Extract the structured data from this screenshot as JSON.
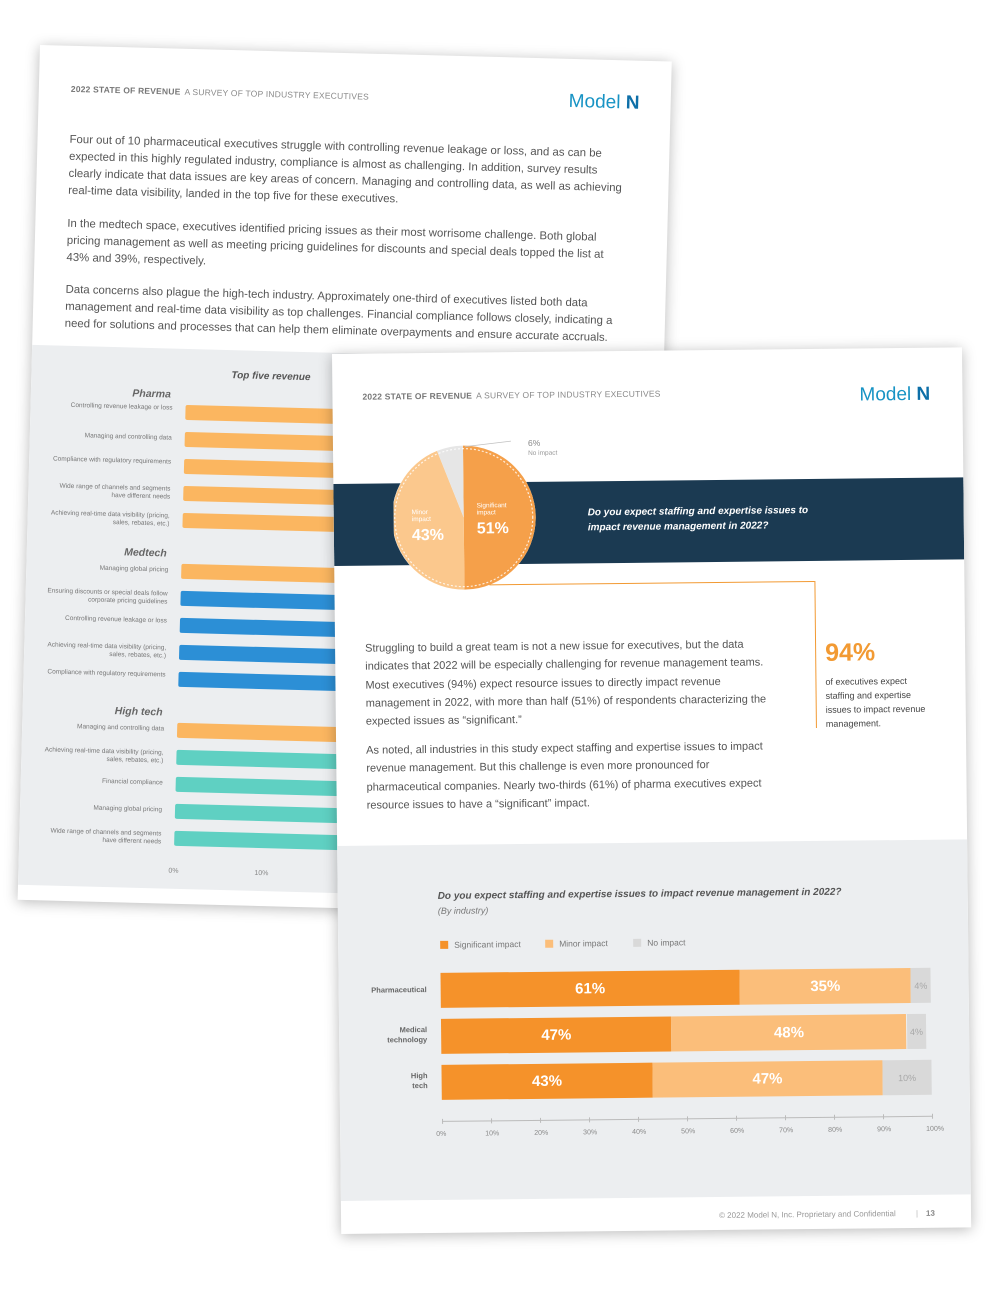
{
  "back_page": {
    "header_bold": "2022 STATE OF REVENUE",
    "header_rest": "A SURVEY OF TOP INDUSTRY EXECUTIVES",
    "logo_text": "Model",
    "logo_mark": "N",
    "paragraphs": [
      "Four out of 10 pharmaceutical executives struggle with controlling revenue leakage or loss, and as can be expected in this highly regulated industry, compliance is almost as challenging. In addition, survey results clearly indicate that data issues are key areas of concern. Managing and controlling data, as well as achieving real-time data visibility, landed in the top five for these executives.",
      "In the medtech space, executives identified pricing issues as their most worrisome challenge. Both global pricing management as well as meeting pricing guidelines for discounts and special deals topped the list at 43% and 39%, respectively.",
      "Data concerns also plague the high-tech industry. Approximately one-third of executives listed both data management and real-time data visibility as top challenges. Financial compliance follows closely, indicating a need for solutions and processes that can help them eliminate overpayments and ensure accurate accruals."
    ],
    "chart_title": "Top five revenue",
    "ticks": [
      "0%",
      "10%"
    ],
    "groups": [
      {
        "name": "Pharma",
        "items": [
          "Controlling revenue leakage or loss",
          "Managing and controlling data",
          "Compliance with regulatory requirements",
          "Wide range of channels and segments have different needs",
          "Achieving real-time data visibility (pricing, sales, rebates, etc.)"
        ]
      },
      {
        "name": "Medtech",
        "items": [
          "Managing global pricing",
          "Ensuring discounts or special deals follow corporate pricing guidelines",
          "Controlling revenue leakage or loss",
          "Achieving real-time data visibility (pricing, sales, rebates, etc.)",
          "Compliance with regulatory requirements"
        ]
      },
      {
        "name": "High tech",
        "items": [
          "Managing and controlling data",
          "Achieving real-time data visibility (pricing, sales, rebates, etc.)",
          "Financial compliance",
          "Managing global pricing",
          "Wide range of channels and segments have different needs"
        ]
      }
    ]
  },
  "front_page": {
    "header_bold": "2022 STATE OF REVENUE",
    "header_rest": "A SURVEY OF TOP INDUSTRY EXECUTIVES",
    "logo_text": "Model",
    "logo_mark": "N",
    "pie": {
      "significant_label": "Significant impact",
      "significant_value": "51%",
      "minor_label": "Minor impact",
      "minor_value": "43%",
      "no_label": "No impact",
      "no_value": "6%"
    },
    "banner_question": "Do you expect staffing and expertise issues to impact revenue management in 2022?",
    "callout_value": "94%",
    "callout_text": "of executives expect staffing and expertise issues to impact revenue management.",
    "paragraphs": [
      "Struggling to build a great team is not a new issue for executives, but the data indicates that 2022 will be especially challenging for revenue management teams. Most executives (94%) expect resource issues to directly impact revenue management in 2022, with more than half (51%) of respondents characterizing the expected issues as “significant.”",
      "As noted, all industries in this study expect staffing and expertise issues to impact revenue management. But this challenge is even more pronounced for pharmaceutical companies. Nearly two-thirds (61%) of pharma executives expect resource issues to have a “significant” impact."
    ],
    "footer": "© 2022 Model N, Inc. Proprietary and Confidential",
    "page_number": "13"
  },
  "colors": {
    "significant": "#f5922a",
    "minor": "#fbbe7a",
    "no": "#d9d9d9",
    "navy": "#1b3a52",
    "blue": "#2c8fd6",
    "teal": "#5fd0c2",
    "orange_light": "#fbb660"
  },
  "chart_data": {
    "type": "bar",
    "orientation": "horizontal",
    "stacked": true,
    "title": "Do you expect staffing and expertise issues to impact revenue management in 2022?",
    "subtitle": "(By industry)",
    "categories": [
      "Pharmaceutical",
      "Medical technology",
      "High tech"
    ],
    "series": [
      {
        "name": "Significant impact",
        "values": [
          61,
          47,
          43
        ],
        "color": "#f5922a"
      },
      {
        "name": "Minor impact",
        "values": [
          35,
          48,
          47
        ],
        "color": "#fbbe7a"
      },
      {
        "name": "No impact",
        "values": [
          4,
          4,
          10
        ],
        "color": "#d9d9d9"
      }
    ],
    "xlim": [
      0,
      100
    ],
    "xticks": [
      "0%",
      "10%",
      "20%",
      "30%",
      "40%",
      "50%",
      "60%",
      "70%",
      "80%",
      "90%",
      "100%"
    ],
    "legend": "top-left"
  }
}
